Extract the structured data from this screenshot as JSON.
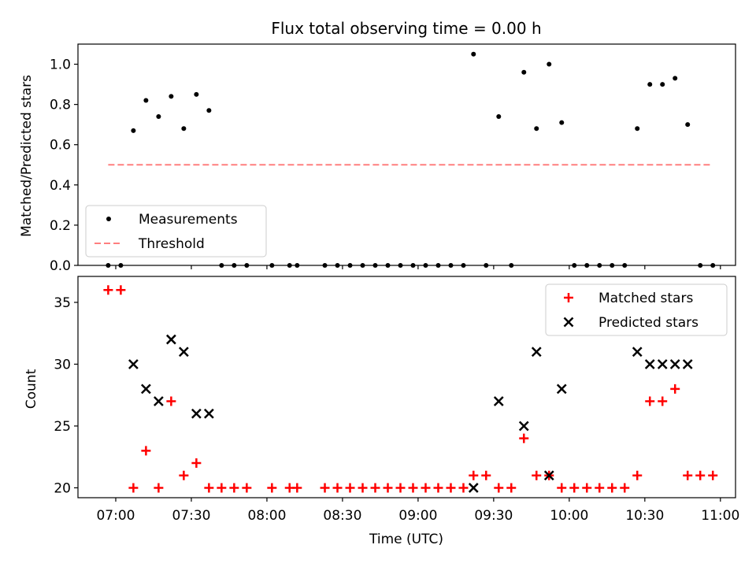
{
  "chart_data": [
    {
      "type": "scatter",
      "title": "Flux total observing time = 0.00 h",
      "ylabel": "Matched/Predicted stars",
      "xlabel": "",
      "xlim": [
        "06:45",
        "11:06"
      ],
      "ylim": [
        0,
        1.1
      ],
      "yticks": [
        "0.0",
        "0.2",
        "0.4",
        "0.6",
        "0.8",
        "1.0"
      ],
      "grid": false,
      "legend": {
        "placement": "lower-left",
        "entries": [
          "Measurements",
          "Threshold"
        ]
      },
      "series": [
        {
          "name": "Measurements",
          "marker": "dot",
          "color": "#000000",
          "points": [
            [
              "06:57",
              0.0
            ],
            [
              "07:02",
              0.0
            ],
            [
              "07:07",
              0.67
            ],
            [
              "07:12",
              0.82
            ],
            [
              "07:17",
              0.74
            ],
            [
              "07:22",
              0.84
            ],
            [
              "07:27",
              0.68
            ],
            [
              "07:32",
              0.85
            ],
            [
              "07:37",
              0.77
            ],
            [
              "07:42",
              0.0
            ],
            [
              "07:47",
              0.0
            ],
            [
              "07:52",
              0.0
            ],
            [
              "08:02",
              0.0
            ],
            [
              "08:09",
              0.0
            ],
            [
              "08:12",
              0.0
            ],
            [
              "08:23",
              0.0
            ],
            [
              "08:28",
              0.0
            ],
            [
              "08:33",
              0.0
            ],
            [
              "08:38",
              0.0
            ],
            [
              "08:43",
              0.0
            ],
            [
              "08:48",
              0.0
            ],
            [
              "08:53",
              0.0
            ],
            [
              "08:58",
              0.0
            ],
            [
              "09:03",
              0.0
            ],
            [
              "09:08",
              0.0
            ],
            [
              "09:13",
              0.0
            ],
            [
              "09:18",
              0.0
            ],
            [
              "09:22",
              1.05
            ],
            [
              "09:27",
              0.0
            ],
            [
              "09:32",
              0.74
            ],
            [
              "09:37",
              0.0
            ],
            [
              "09:42",
              0.96
            ],
            [
              "09:47",
              0.68
            ],
            [
              "09:52",
              1.0
            ],
            [
              "09:57",
              0.71
            ],
            [
              "10:02",
              0.0
            ],
            [
              "10:07",
              0.0
            ],
            [
              "10:12",
              0.0
            ],
            [
              "10:17",
              0.0
            ],
            [
              "10:22",
              0.0
            ],
            [
              "10:27",
              0.68
            ],
            [
              "10:32",
              0.9
            ],
            [
              "10:37",
              0.9
            ],
            [
              "10:42",
              0.93
            ],
            [
              "10:47",
              0.7
            ],
            [
              "10:52",
              0.0
            ],
            [
              "10:57",
              0.0
            ]
          ]
        },
        {
          "name": "Threshold",
          "type": "line",
          "style": "dashed",
          "color": "#ff7f7f",
          "points": [
            [
              "06:57",
              0.5
            ],
            [
              "10:57",
              0.5
            ]
          ]
        }
      ]
    },
    {
      "type": "scatter",
      "title": "",
      "ylabel": "Count",
      "xlabel": "Time (UTC)",
      "xlim": [
        "06:45",
        "11:06"
      ],
      "ylim": [
        19.2,
        37.1
      ],
      "yticks": [
        "20",
        "25",
        "30",
        "35"
      ],
      "xticks": [
        "07:00",
        "07:30",
        "08:00",
        "08:30",
        "09:00",
        "09:30",
        "10:00",
        "10:30",
        "11:00"
      ],
      "grid": false,
      "legend": {
        "placement": "upper-right",
        "entries": [
          "Matched stars",
          "Predicted stars"
        ]
      },
      "series": [
        {
          "name": "Matched stars",
          "marker": "plus",
          "color": "#ff0000",
          "points": [
            [
              "06:57",
              36
            ],
            [
              "07:02",
              36
            ],
            [
              "07:07",
              20
            ],
            [
              "07:12",
              23
            ],
            [
              "07:17",
              20
            ],
            [
              "07:22",
              27
            ],
            [
              "07:27",
              21
            ],
            [
              "07:32",
              22
            ],
            [
              "07:37",
              20
            ],
            [
              "07:42",
              20
            ],
            [
              "07:47",
              20
            ],
            [
              "07:52",
              20
            ],
            [
              "08:02",
              20
            ],
            [
              "08:09",
              20
            ],
            [
              "08:12",
              20
            ],
            [
              "08:23",
              20
            ],
            [
              "08:28",
              20
            ],
            [
              "08:33",
              20
            ],
            [
              "08:38",
              20
            ],
            [
              "08:43",
              20
            ],
            [
              "08:48",
              20
            ],
            [
              "08:53",
              20
            ],
            [
              "08:58",
              20
            ],
            [
              "09:03",
              20
            ],
            [
              "09:08",
              20
            ],
            [
              "09:13",
              20
            ],
            [
              "09:18",
              20
            ],
            [
              "09:22",
              21
            ],
            [
              "09:27",
              21
            ],
            [
              "09:32",
              20
            ],
            [
              "09:37",
              20
            ],
            [
              "09:42",
              24
            ],
            [
              "09:47",
              21
            ],
            [
              "09:52",
              21
            ],
            [
              "09:57",
              20
            ],
            [
              "10:02",
              20
            ],
            [
              "10:07",
              20
            ],
            [
              "10:12",
              20
            ],
            [
              "10:17",
              20
            ],
            [
              "10:22",
              20
            ],
            [
              "10:27",
              21
            ],
            [
              "10:32",
              27
            ],
            [
              "10:37",
              27
            ],
            [
              "10:42",
              28
            ],
            [
              "10:47",
              21
            ],
            [
              "10:52",
              21
            ],
            [
              "10:57",
              21
            ]
          ]
        },
        {
          "name": "Predicted stars",
          "marker": "x",
          "color": "#000000",
          "points": [
            [
              "07:07",
              30
            ],
            [
              "07:12",
              28
            ],
            [
              "07:17",
              27
            ],
            [
              "07:22",
              32
            ],
            [
              "07:27",
              31
            ],
            [
              "07:32",
              26
            ],
            [
              "07:37",
              26
            ],
            [
              "09:22",
              20
            ],
            [
              "09:32",
              27
            ],
            [
              "09:42",
              25
            ],
            [
              "09:47",
              31
            ],
            [
              "09:52",
              21
            ],
            [
              "09:57",
              28
            ],
            [
              "10:27",
              31
            ],
            [
              "10:32",
              30
            ],
            [
              "10:37",
              30
            ],
            [
              "10:42",
              30
            ],
            [
              "10:47",
              30
            ]
          ]
        }
      ]
    }
  ]
}
